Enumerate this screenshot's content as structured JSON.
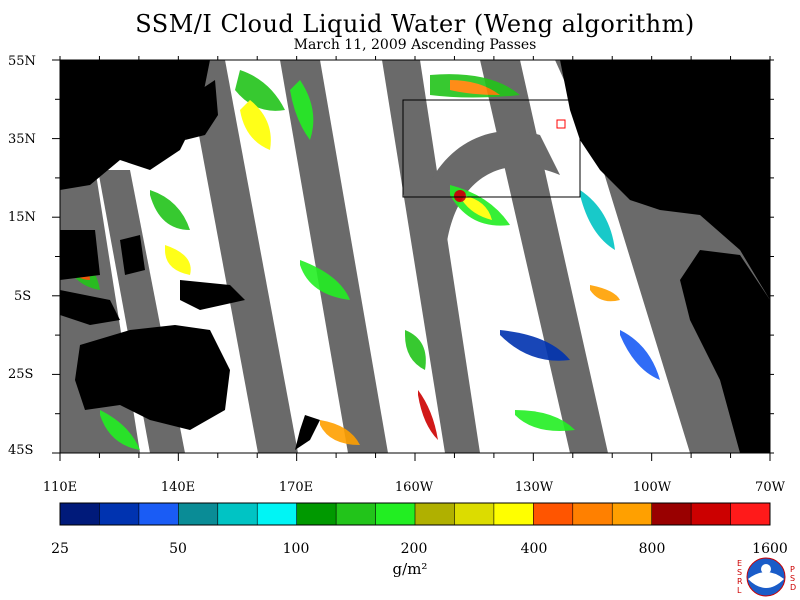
{
  "title": "SSM/I Cloud Liquid Water (Weng algorithm)",
  "subtitle": "March 11, 2009  Ascending Passes",
  "lat_labels": [
    "55N",
    "35N",
    "15N",
    "5S",
    "25S",
    "45S"
  ],
  "lon_labels": [
    "110E",
    "140E",
    "170E",
    "160W",
    "130W",
    "100W",
    "70W"
  ],
  "colorbar": {
    "colors": [
      "#001a7a",
      "#0033b0",
      "#1a5cf5",
      "#0a8c96",
      "#00c4c4",
      "#00f5f5",
      "#009900",
      "#22c41a",
      "#22ee22",
      "#b0b000",
      "#dcdc00",
      "#ffff00",
      "#ff5500",
      "#ff8000",
      "#ffa000",
      "#990000",
      "#cc0000",
      "#ff1a1a"
    ],
    "tick_labels": [
      "25",
      "50",
      "100",
      "200",
      "400",
      "800",
      "1600"
    ]
  },
  "unit_label": "g/m²",
  "logo": {
    "left_letters": "ESRL",
    "right_letters": "PSD",
    "name": "noaa-logo"
  },
  "colors": {
    "land": "#000000",
    "no_data": "#6a6a6a",
    "ocean_clear": "#ffffff"
  }
}
